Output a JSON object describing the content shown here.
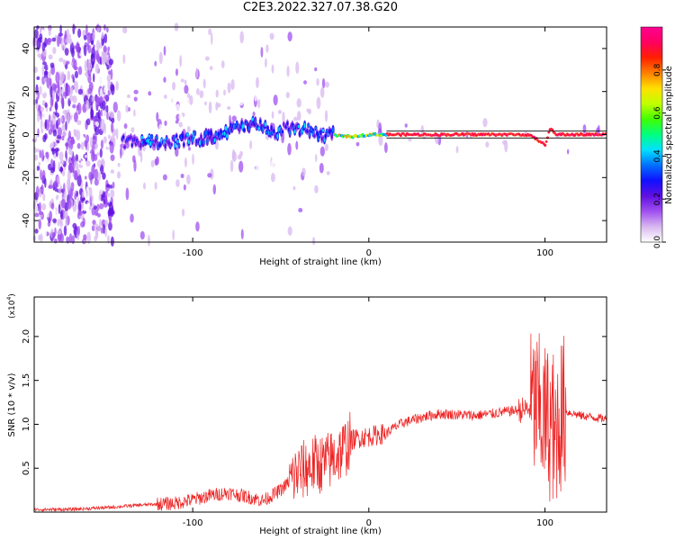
{
  "figure_title": "C2E3.2022.327.07.38.G20",
  "chart_data": [
    {
      "type": "heatmap",
      "xlabel": "Height of straight line (km)",
      "ylabel": "Frequency (Hz)",
      "xlim": [
        -190,
        135
      ],
      "ylim": [
        -50,
        50
      ],
      "x_ticks": [
        {
          "value": -100,
          "label": "-100"
        },
        {
          "value": 0,
          "label": "0"
        },
        {
          "value": 100,
          "label": "100"
        }
      ],
      "y_ticks": [
        {
          "value": -40,
          "label": "-40"
        },
        {
          "value": -20,
          "label": "-20"
        },
        {
          "value": 0,
          "label": "0"
        },
        {
          "value": 20,
          "label": "20"
        },
        {
          "value": 40,
          "label": "40"
        }
      ],
      "colorbar": {
        "label": "Normalized spectral amplitude",
        "range": [
          0,
          1
        ],
        "ticks": [
          {
            "value": 0.0,
            "label": "0.0"
          },
          {
            "value": 0.2,
            "label": "0.2"
          },
          {
            "value": 0.4,
            "label": "0.4"
          },
          {
            "value": 0.6,
            "label": "0.6"
          },
          {
            "value": 0.8,
            "label": "0.8"
          }
        ],
        "colors": [
          "#ffffff",
          "#d8b8f0",
          "#a050f0",
          "#6010e0",
          "#1010ff",
          "#0070ff",
          "#00e0ff",
          "#00ff80",
          "#40ff00",
          "#c0ff00",
          "#ffe000",
          "#ff8000",
          "#ff2000",
          "#ff0060",
          "#ff0090"
        ]
      },
      "ridge": [
        {
          "x": -190,
          "f": -6
        },
        {
          "x": -170,
          "f": -5
        },
        {
          "x": -145,
          "f": -4
        },
        {
          "x": -130,
          "f": -3
        },
        {
          "x": -110,
          "f": -3
        },
        {
          "x": -90,
          "f": -1
        },
        {
          "x": -75,
          "f": 3
        },
        {
          "x": -65,
          "f": 5
        },
        {
          "x": -55,
          "f": 1
        },
        {
          "x": -45,
          "f": 3
        },
        {
          "x": -35,
          "f": 2
        },
        {
          "x": -25,
          "f": 0
        },
        {
          "x": -10,
          "f": -1
        },
        {
          "x": 0,
          "f": 0
        },
        {
          "x": 10,
          "f": 0
        },
        {
          "x": 50,
          "f": 0
        },
        {
          "x": 90,
          "f": 0
        },
        {
          "x": 95,
          "f": -2
        },
        {
          "x": 100,
          "f": -5
        },
        {
          "x": 103,
          "f": 3
        },
        {
          "x": 106,
          "f": 0
        },
        {
          "x": 135,
          "f": 0
        }
      ]
    },
    {
      "type": "line",
      "xlabel": "Height of straight line (km)",
      "ylabel": "SNR (10 * v/v)",
      "y_multiplier": "(x10",
      "y_multiplier_exp": "4",
      "y_multiplier_close": ")",
      "xlim": [
        -190,
        135
      ],
      "ylim": [
        0,
        2.45
      ],
      "x_ticks": [
        {
          "value": -100,
          "label": "-100"
        },
        {
          "value": 0,
          "label": "0"
        },
        {
          "value": 100,
          "label": "100"
        }
      ],
      "y_ticks": [
        {
          "value": 0.5,
          "label": "0.5"
        },
        {
          "value": 1.0,
          "label": "1.0"
        },
        {
          "value": 1.5,
          "label": "1.5"
        },
        {
          "value": 2.0,
          "label": "2.0"
        }
      ],
      "line_color": "#ee2222",
      "series": [
        {
          "x": [
            -190,
            -170,
            -150,
            -130,
            -110,
            -100,
            -90,
            -80,
            -70,
            -60,
            -50,
            -40,
            -35,
            -30,
            -25,
            -20,
            -15,
            -10,
            -5,
            0,
            5,
            10,
            15,
            20,
            25,
            30,
            35,
            40,
            50,
            60,
            70,
            80,
            90,
            95,
            100,
            103,
            106,
            110,
            115,
            120,
            135
          ],
          "y": [
            0.03,
            0.03,
            0.05,
            0.08,
            0.1,
            0.14,
            0.19,
            0.22,
            0.18,
            0.13,
            0.25,
            0.45,
            0.5,
            0.55,
            0.55,
            0.62,
            0.7,
            0.82,
            0.85,
            0.86,
            0.88,
            0.9,
            0.97,
            1.02,
            1.05,
            1.08,
            1.1,
            1.12,
            1.11,
            1.1,
            1.12,
            1.15,
            1.17,
            1.2,
            1.05,
            1.0,
            0.95,
            1.15,
            1.13,
            1.1,
            1.06
          ]
        }
      ]
    }
  ]
}
